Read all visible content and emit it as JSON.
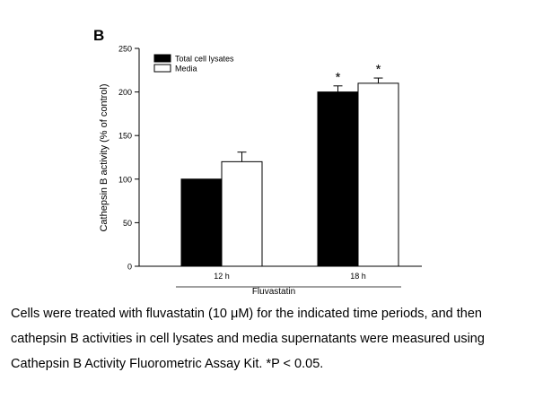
{
  "panel_label": "B",
  "caption": [
    "Cells were treated with fluvastatin (10 μM) for the indicated time periods, and then",
    "cathepsin B activities in cell lysates and media supernatants were measured using",
    "Cathepsin B Activity Fluorometric Assay Kit. *P < 0.05."
  ],
  "chart_data": {
    "type": "bar",
    "title": "",
    "xlabel": "Fluvastatin",
    "ylabel": "Cathepsin B activity (% of control)",
    "ylim": [
      0,
      250
    ],
    "yticks": [
      0,
      50,
      100,
      150,
      200,
      250
    ],
    "categories": [
      "12 h",
      "18 h"
    ],
    "legend_position": "top-left",
    "series": [
      {
        "name": "Total cell lysates",
        "color": "#000000",
        "values": [
          100,
          200
        ],
        "errors": [
          0,
          7
        ],
        "significance": [
          "",
          "*"
        ]
      },
      {
        "name": "Media",
        "color": "#ffffff",
        "values": [
          120,
          210
        ],
        "errors": [
          11,
          6
        ],
        "significance": [
          "",
          "*"
        ]
      }
    ]
  }
}
